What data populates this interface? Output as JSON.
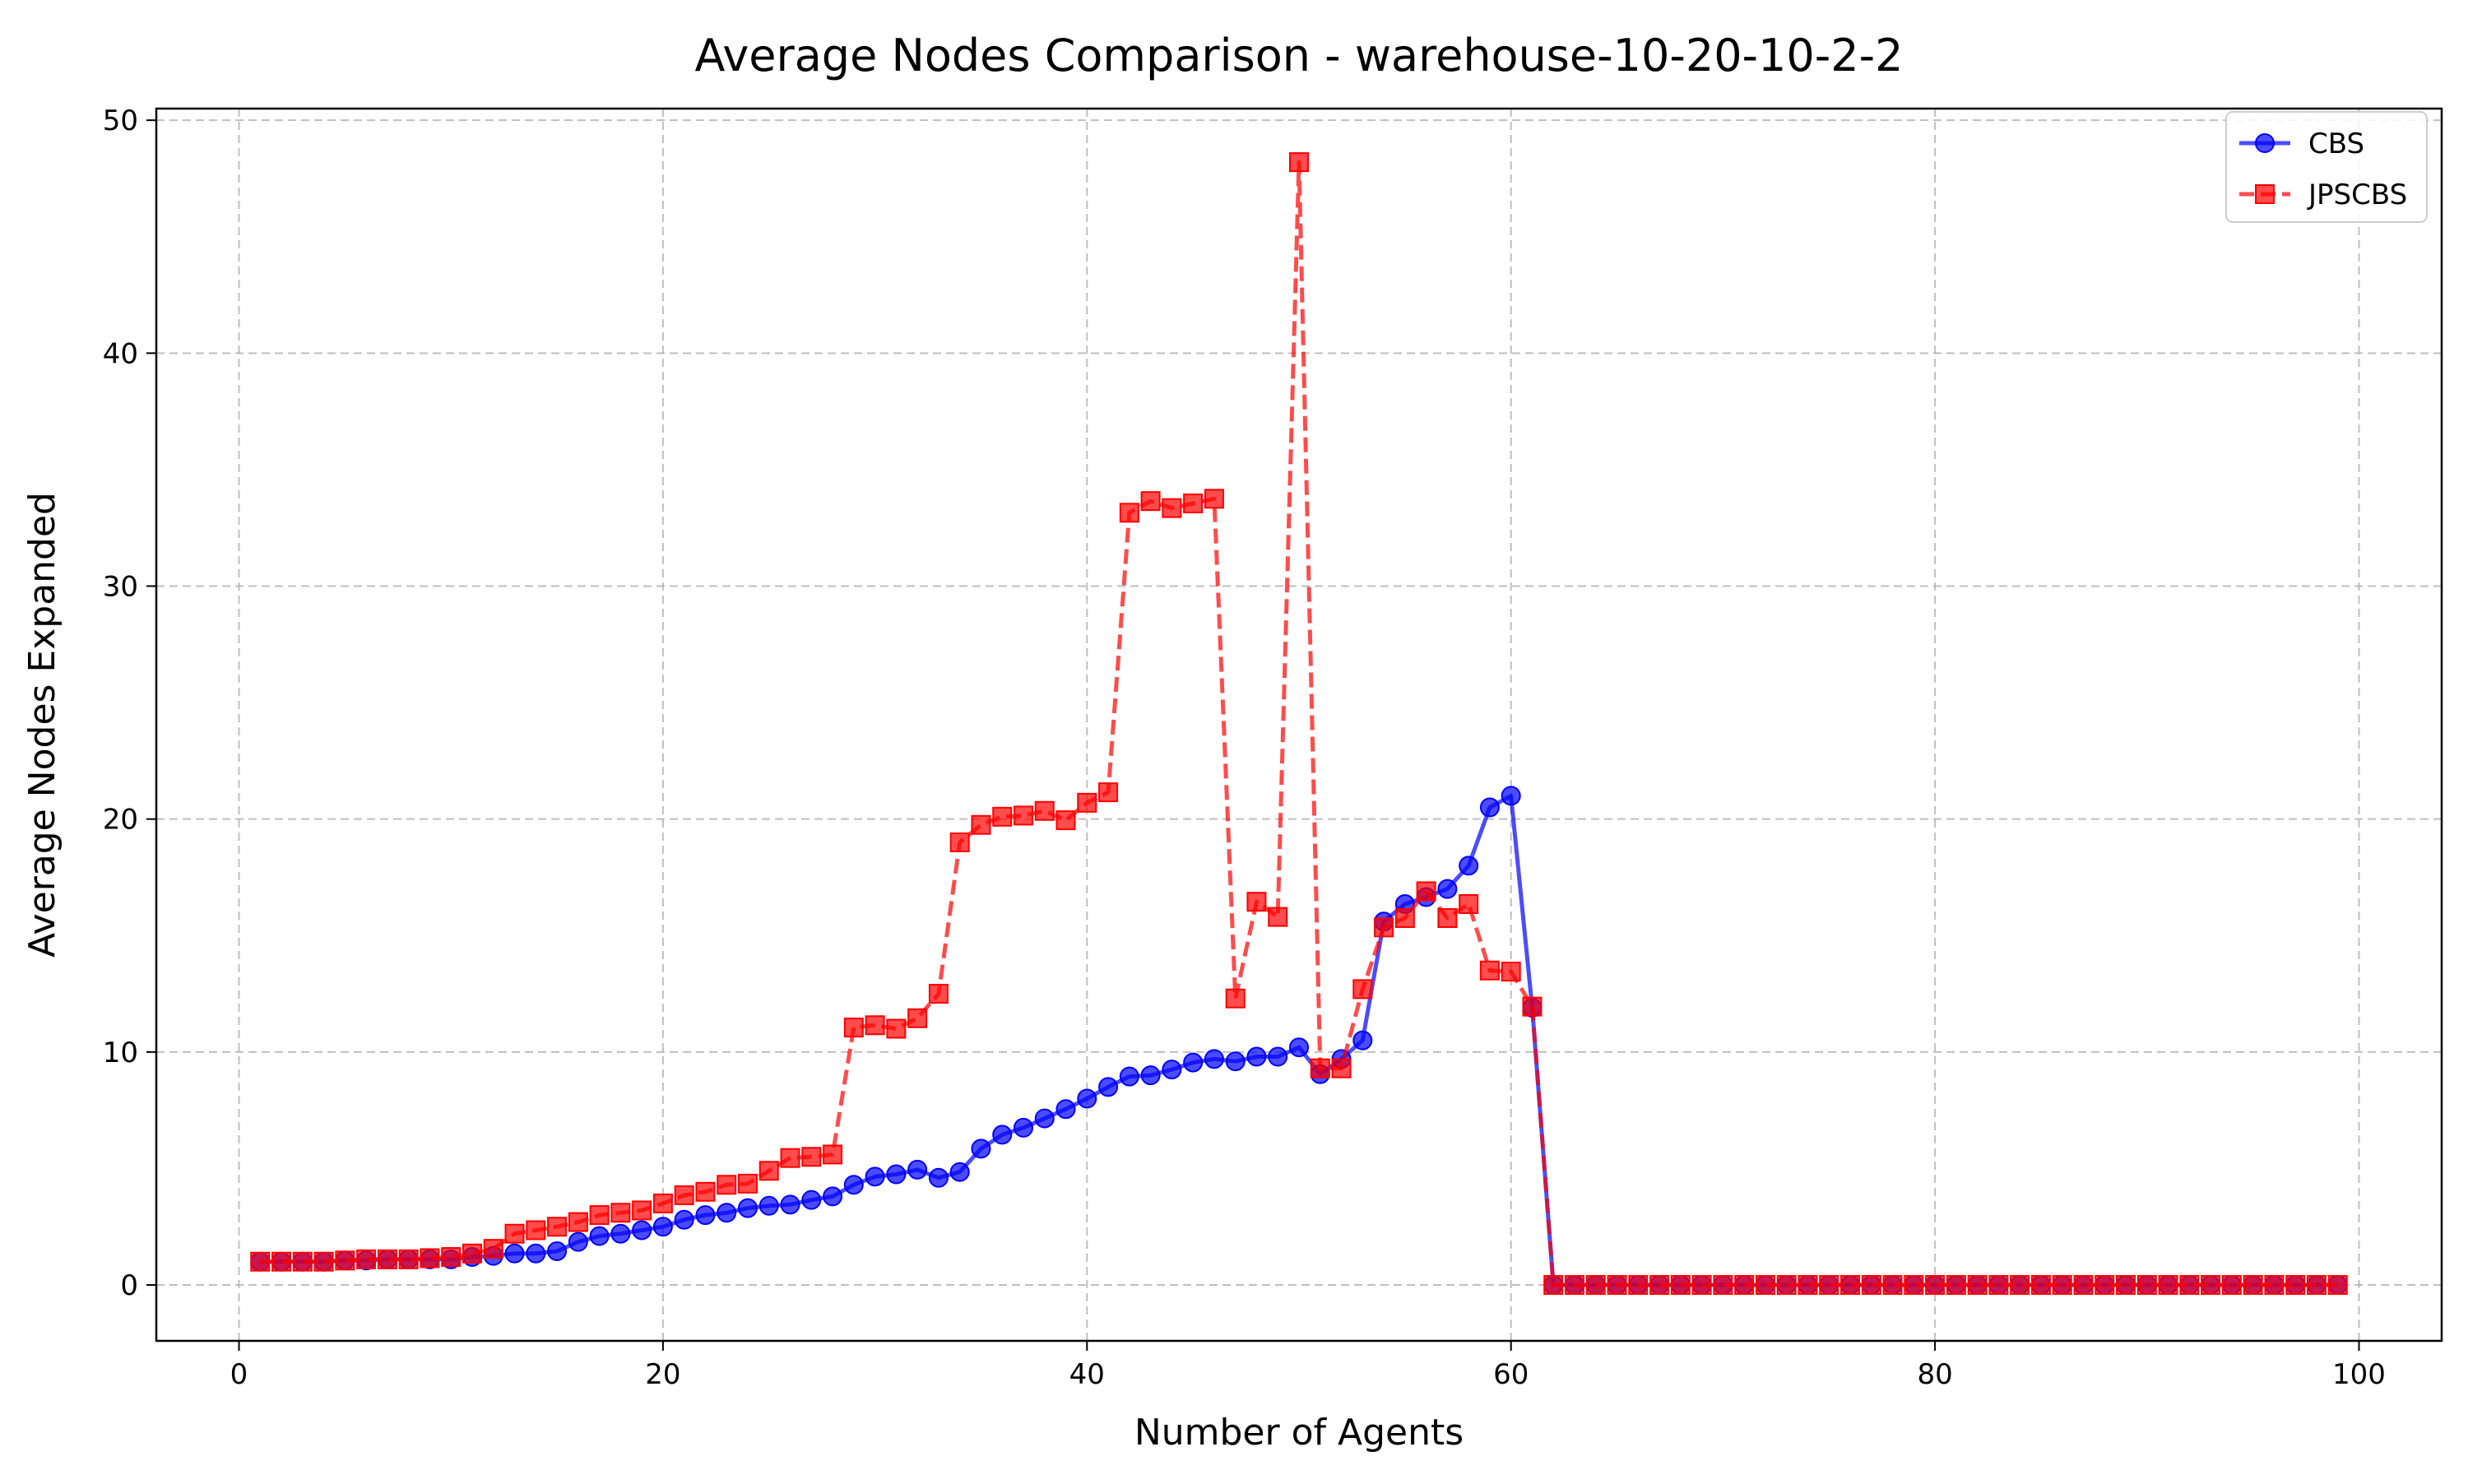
{
  "chart_data": {
    "type": "line",
    "title": "Average Nodes Comparison - warehouse-10-20-10-2-2",
    "xlabel": "Number of Agents",
    "ylabel": "Average Nodes Expanded",
    "xlim": [
      -3.9,
      103.9
    ],
    "ylim": [
      -2.4,
      50.5
    ],
    "xticks": [
      0,
      20,
      40,
      60,
      80,
      100
    ],
    "yticks": [
      0,
      10,
      20,
      30,
      40,
      50
    ],
    "grid": true,
    "legend_position": "top-right",
    "x": [
      1,
      2,
      3,
      4,
      5,
      6,
      7,
      8,
      9,
      10,
      11,
      12,
      13,
      14,
      15,
      16,
      17,
      18,
      19,
      20,
      21,
      22,
      23,
      24,
      25,
      26,
      27,
      28,
      29,
      30,
      31,
      32,
      33,
      34,
      35,
      36,
      37,
      38,
      39,
      40,
      41,
      42,
      43,
      44,
      45,
      46,
      47,
      48,
      49,
      50,
      51,
      52,
      53,
      54,
      55,
      56,
      57,
      58,
      59,
      60,
      61,
      62,
      63,
      64,
      65,
      66,
      67,
      68,
      69,
      70,
      71,
      72,
      73,
      74,
      75,
      76,
      77,
      78,
      79,
      80,
      81,
      82,
      83,
      84,
      85,
      86,
      87,
      88,
      89,
      90,
      91,
      92,
      93,
      94,
      95,
      96,
      97,
      98,
      99
    ],
    "series": [
      {
        "name": "CBS",
        "color": "#0000ff",
        "line_style": "solid",
        "marker": "circle",
        "values": [
          1,
          1,
          1,
          1,
          1.05,
          1.05,
          1.1,
          1.1,
          1.1,
          1.1,
          1.2,
          1.25,
          1.35,
          1.35,
          1.45,
          1.85,
          2.1,
          2.2,
          2.35,
          2.5,
          2.8,
          3.0,
          3.1,
          3.3,
          3.4,
          3.45,
          3.65,
          3.8,
          4.3,
          4.65,
          4.75,
          4.95,
          4.6,
          4.85,
          5.85,
          6.45,
          6.75,
          7.15,
          7.55,
          8.0,
          8.5,
          8.95,
          9.0,
          9.25,
          9.55,
          9.7,
          9.6,
          9.8,
          9.8,
          10.2,
          9.05,
          9.7,
          10.5,
          15.6,
          16.35,
          16.65,
          17.0,
          18.0,
          20.5,
          21.0,
          11.9,
          0,
          0,
          0,
          0,
          0,
          0,
          0,
          0,
          0,
          0,
          0,
          0,
          0,
          0,
          0,
          0,
          0,
          0,
          0,
          0,
          0,
          0,
          0,
          0,
          0,
          0,
          0,
          0,
          0,
          0,
          0,
          0,
          0,
          0,
          0,
          0,
          0,
          0
        ]
      },
      {
        "name": "JPSCBS",
        "color": "#ff0000",
        "line_style": "dashed",
        "marker": "square",
        "values": [
          1,
          1,
          1,
          1,
          1.05,
          1.1,
          1.1,
          1.1,
          1.15,
          1.2,
          1.35,
          1.55,
          2.2,
          2.35,
          2.5,
          2.7,
          3.0,
          3.1,
          3.2,
          3.5,
          3.85,
          4.0,
          4.3,
          4.35,
          4.9,
          5.45,
          5.5,
          5.6,
          11.05,
          11.15,
          11.0,
          11.45,
          12.5,
          19.0,
          19.75,
          20.1,
          20.15,
          20.35,
          19.95,
          20.7,
          21.15,
          33.15,
          33.65,
          33.35,
          33.55,
          33.75,
          12.3,
          16.45,
          15.8,
          48.2,
          9.3,
          9.3,
          12.7,
          15.35,
          15.75,
          16.9,
          15.75,
          16.35,
          13.5,
          13.45,
          11.95,
          0,
          0,
          0,
          0,
          0,
          0,
          0,
          0,
          0,
          0,
          0,
          0,
          0,
          0,
          0,
          0,
          0,
          0,
          0,
          0,
          0,
          0,
          0,
          0,
          0,
          0,
          0,
          0,
          0,
          0,
          0,
          0,
          0,
          0,
          0,
          0,
          0,
          0
        ]
      }
    ]
  }
}
